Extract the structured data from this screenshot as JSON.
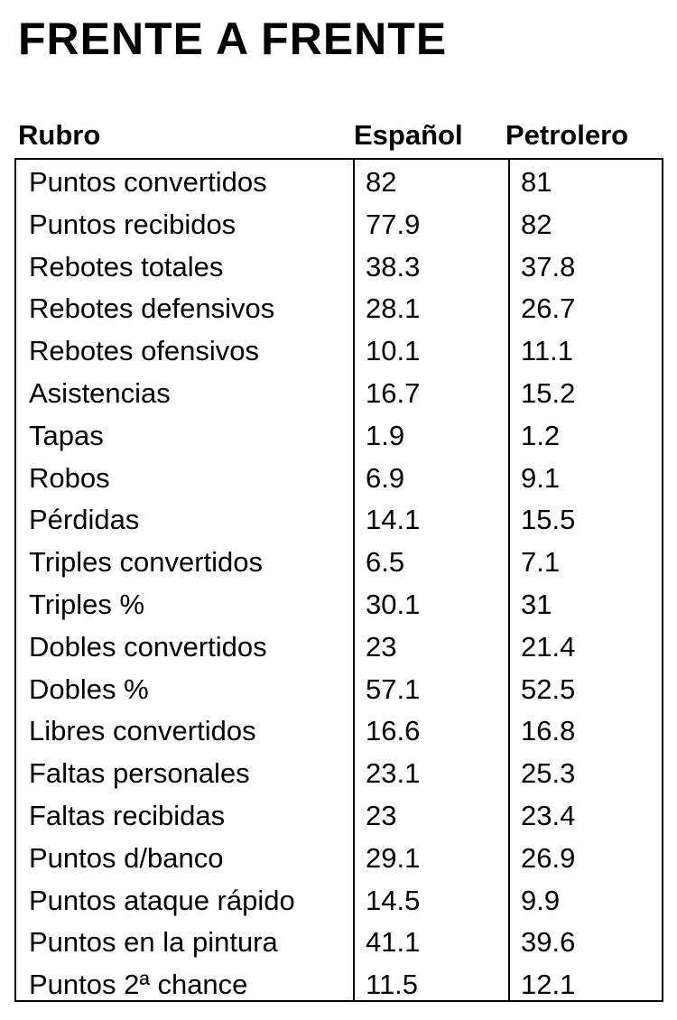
{
  "title": "FRENTE A FRENTE",
  "headers": {
    "rubro": "Rubro",
    "espanol": "Español",
    "petrolero": "Petrolero"
  },
  "rows": [
    {
      "rubro": "Puntos convertidos",
      "espanol": "82",
      "petrolero": "81"
    },
    {
      "rubro": "Puntos recibidos",
      "espanol": "77.9",
      "petrolero": "82"
    },
    {
      "rubro": "Rebotes totales",
      "espanol": "38.3",
      "petrolero": "37.8"
    },
    {
      "rubro": "Rebotes defensivos",
      "espanol": "28.1",
      "petrolero": "26.7"
    },
    {
      "rubro": "Rebotes ofensivos",
      "espanol": "10.1",
      "petrolero": "11.1"
    },
    {
      "rubro": "Asistencias",
      "espanol": "16.7",
      "petrolero": "15.2"
    },
    {
      "rubro": "Tapas",
      "espanol": "1.9",
      "petrolero": "1.2"
    },
    {
      "rubro": "Robos",
      "espanol": "6.9",
      "petrolero": "9.1"
    },
    {
      "rubro": "Pérdidas",
      "espanol": "14.1",
      "petrolero": "15.5"
    },
    {
      "rubro": "Triples convertidos",
      "espanol": "6.5",
      "petrolero": "7.1"
    },
    {
      "rubro": "Triples %",
      "espanol": "30.1",
      "petrolero": "31"
    },
    {
      "rubro": "Dobles convertidos",
      "espanol": "23",
      "petrolero": "21.4"
    },
    {
      "rubro": "Dobles %",
      "espanol": "57.1",
      "petrolero": "52.5"
    },
    {
      "rubro": "Libres convertidos",
      "espanol": "16.6",
      "petrolero": "16.8"
    },
    {
      "rubro": "Faltas personales",
      "espanol": "23.1",
      "petrolero": "25.3"
    },
    {
      "rubro": "Faltas recibidas",
      "espanol": "23",
      "petrolero": "23.4"
    },
    {
      "rubro": "Puntos d/banco",
      "espanol": "29.1",
      "petrolero": "26.9"
    },
    {
      "rubro": "Puntos ataque rápido",
      "espanol": "14.5",
      "petrolero": "9.9"
    },
    {
      "rubro": "Puntos en la pintura",
      "espanol": "41.1",
      "petrolero": "39.6"
    },
    {
      "rubro": "Puntos 2ª chance",
      "espanol": "11.5",
      "petrolero": "12.1"
    }
  ]
}
